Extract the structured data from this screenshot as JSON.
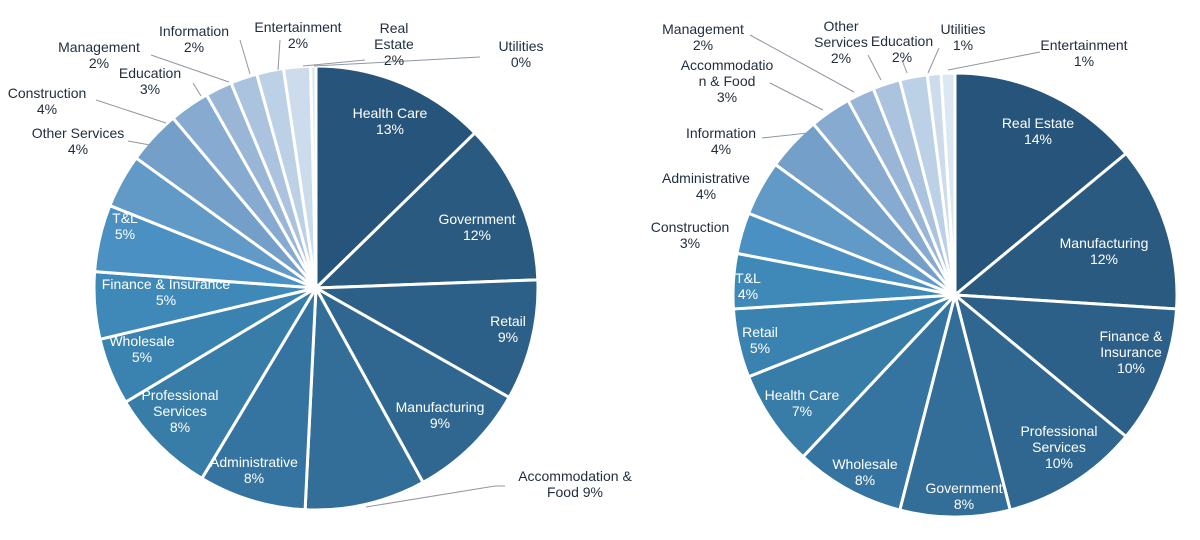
{
  "chart_data": [
    {
      "type": "pie",
      "title": "",
      "slices": [
        {
          "label": "Health Care",
          "value": 13,
          "value_label": "13%",
          "color": "#27547a"
        },
        {
          "label": "Government",
          "value": 12,
          "value_label": "12%",
          "color": "#2a5a80"
        },
        {
          "label": "Retail",
          "value": 9,
          "value_label": "9%",
          "color": "#2d6088"
        },
        {
          "label": "Manufacturing",
          "value": 9,
          "value_label": "9%",
          "color": "#306790"
        },
        {
          "label": "Accommodation & Food",
          "value": 9,
          "value_label": "Food 9%",
          "label_line1": "Accommodation &",
          "color": "#336e98"
        },
        {
          "label": "Administrative",
          "value": 8,
          "value_label": "8%",
          "color": "#3574a0"
        },
        {
          "label": "Professional Services",
          "value": 8,
          "value_label": "8%",
          "color": "#387ca8"
        },
        {
          "label": "Wholesale",
          "value": 5,
          "value_label": "5%",
          "color": "#3a82b0"
        },
        {
          "label": "Finance & Insurance",
          "value": 5,
          "value_label": "5%",
          "color": "#3f89b8"
        },
        {
          "label": "T&L",
          "value": 5,
          "value_label": "5%",
          "color": "#4a90c2"
        },
        {
          "label": "Other Services",
          "value": 4,
          "value_label": "4%",
          "color": "#6199c7"
        },
        {
          "label": "Construction",
          "value": 4,
          "value_label": "4%",
          "color": "#739fc9"
        },
        {
          "label": "Education",
          "value": 3,
          "value_label": "3%",
          "color": "#86aad0"
        },
        {
          "label": "Management",
          "value": 2,
          "value_label": "2%",
          "color": "#9ab6d7"
        },
        {
          "label": "Information",
          "value": 2,
          "value_label": "2%",
          "color": "#abc3de"
        },
        {
          "label": "Entertainment",
          "value": 2,
          "value_label": "2%",
          "color": "#bcd0e6"
        },
        {
          "label": "Real Estate",
          "value": 2,
          "value_label": "2%",
          "color": "#cddcec"
        },
        {
          "label": "Utilities",
          "value": 0.4,
          "value_label": "0%",
          "color": "#dde7f2"
        }
      ]
    },
    {
      "type": "pie",
      "title": "",
      "slices": [
        {
          "label": "Real Estate",
          "value": 14,
          "value_label": "14%",
          "color": "#27547a"
        },
        {
          "label": "Manufacturing",
          "value": 12,
          "value_label": "12%",
          "color": "#2a5a80"
        },
        {
          "label": "Finance & Insurance",
          "value": 10,
          "value_label": "10%",
          "color": "#2d6088"
        },
        {
          "label": "Professional Services",
          "value": 10,
          "value_label": "10%",
          "color": "#306790"
        },
        {
          "label": "Government",
          "value": 8,
          "value_label": "8%",
          "color": "#336e98"
        },
        {
          "label": "Wholesale",
          "value": 8,
          "value_label": "8%",
          "color": "#3574a0"
        },
        {
          "label": "Health Care",
          "value": 7,
          "value_label": "7%",
          "color": "#387ca8"
        },
        {
          "label": "Retail",
          "value": 5,
          "value_label": "5%",
          "color": "#3a82b0"
        },
        {
          "label": "T&L",
          "value": 4,
          "value_label": "4%",
          "color": "#3f89b8"
        },
        {
          "label": "Construction",
          "value": 3,
          "value_label": "3%",
          "color": "#4a90c2"
        },
        {
          "label": "Administrative",
          "value": 4,
          "value_label": "4%",
          "color": "#6199c7"
        },
        {
          "label": "Information",
          "value": 4,
          "value_label": "4%",
          "color": "#739fc9"
        },
        {
          "label": "Accommodation & Food",
          "value": 3,
          "value_label": "3%",
          "label_line1": "Accommodatio",
          "label_line2": "n & Food",
          "color": "#86aad0"
        },
        {
          "label": "Management",
          "value": 2,
          "value_label": "2%",
          "color": "#9ab6d7"
        },
        {
          "label": "Other Services",
          "value": 2,
          "value_label": "2%",
          "color": "#abc3de"
        },
        {
          "label": "Education",
          "value": 2,
          "value_label": "2%",
          "color": "#bcd0e6"
        },
        {
          "label": "Utilities",
          "value": 1,
          "value_label": "1%",
          "color": "#cddcec"
        },
        {
          "label": "Entertainment",
          "value": 1,
          "value_label": "1%",
          "color": "#dde7f2"
        }
      ]
    }
  ]
}
